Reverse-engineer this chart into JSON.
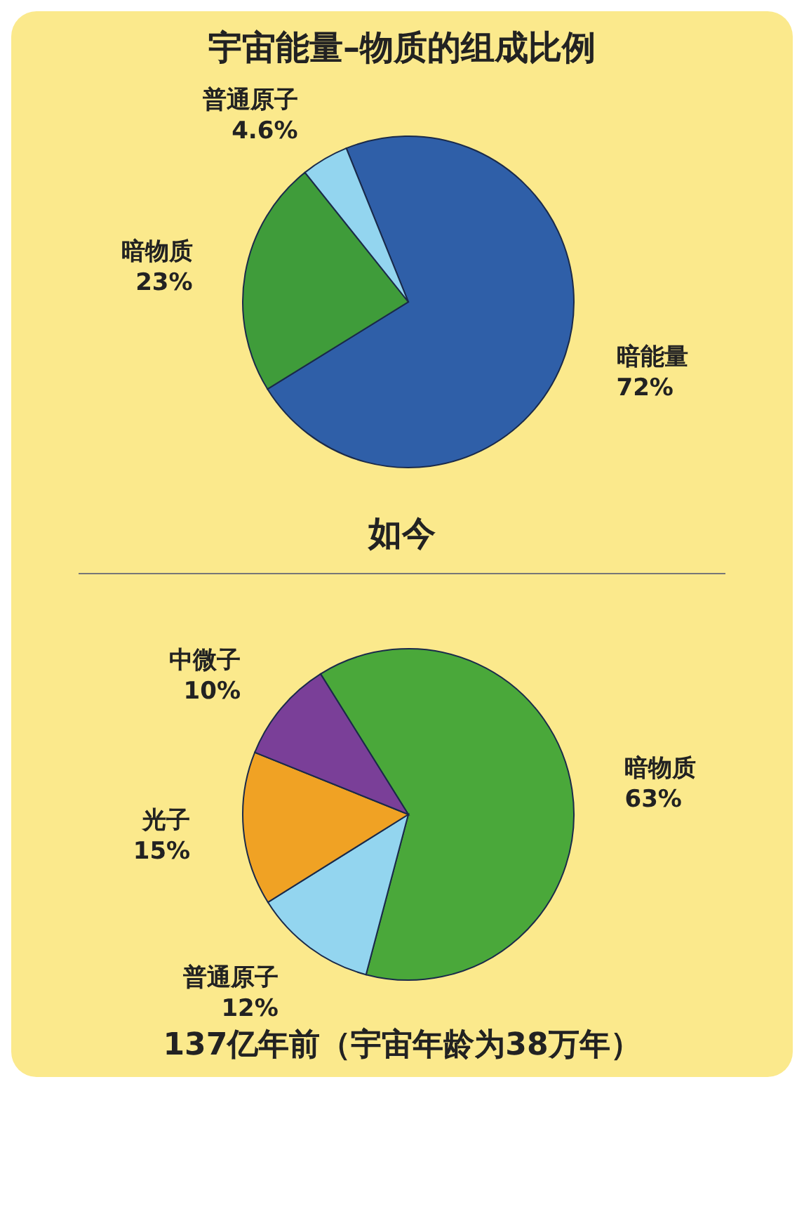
{
  "chart_data": [
    {
      "type": "pie",
      "title": "宇宙能量–物质的组成比例",
      "subtitle": "如今",
      "categories": [
        "暗能量",
        "暗物质",
        "普通原子"
      ],
      "values": [
        72,
        23,
        4.6
      ],
      "value_labels": [
        "72%",
        "23%",
        "4.6%"
      ],
      "colors": [
        "#2f5fa8",
        "#3f9c3a",
        "#93d5ef"
      ]
    },
    {
      "type": "pie",
      "title": "137亿年前（宇宙年龄为38万年）",
      "categories": [
        "暗物质",
        "普通原子",
        "光子",
        "中微子"
      ],
      "values": [
        63,
        12,
        15,
        10
      ],
      "value_labels": [
        "63%",
        "12%",
        "15%",
        "10%"
      ],
      "colors": [
        "#4aa83a",
        "#93d5ef",
        "#f0a224",
        "#7a3f98"
      ]
    }
  ]
}
